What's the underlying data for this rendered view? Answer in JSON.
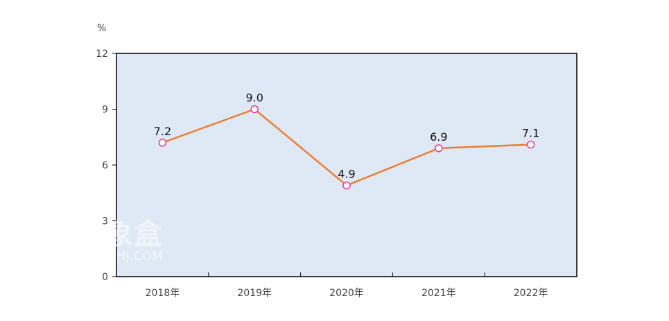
{
  "chart_data": {
    "type": "line",
    "title": "",
    "xlabel": "",
    "ylabel": "%",
    "categories": [
      "2018年",
      "2019年",
      "2020年",
      "2021年",
      "2022年"
    ],
    "series": [
      {
        "values": [
          7.2,
          9.0,
          4.9,
          6.9,
          7.1
        ]
      }
    ],
    "data_labels": [
      "7.2",
      "9.0",
      "4.9",
      "6.9",
      "7.1"
    ],
    "ylim": [
      0,
      12
    ],
    "yticks": [
      "0",
      "3",
      "6",
      "9",
      "12"
    ],
    "grid": false,
    "legend": "none",
    "colors": {
      "line": "#ed7d31",
      "marker_stroke": "#e8369b",
      "marker_fill": "#ffffff",
      "plot_background": "#dfe9f5",
      "axis": "#000000"
    }
  },
  "watermark": {
    "main": "象盒",
    "sub": "HJ.COM"
  }
}
